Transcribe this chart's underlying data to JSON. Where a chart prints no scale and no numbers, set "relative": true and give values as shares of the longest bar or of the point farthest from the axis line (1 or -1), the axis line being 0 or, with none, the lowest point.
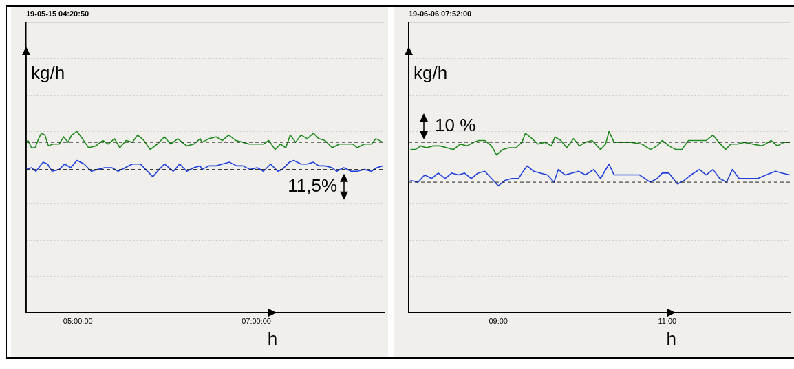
{
  "chart_data": [
    {
      "type": "line",
      "title": "19-05-15 04:20:50",
      "xlabel": "h",
      "ylabel": "kg/h",
      "relative": true,
      "grid": "y",
      "marker": "none",
      "legend": false,
      "xlim": [
        4.42,
        8.43
      ],
      "xticks": [
        {
          "value": 5,
          "label": "05:00:00"
        },
        {
          "value": 7,
          "label": "07:00:00"
        }
      ],
      "series": [
        {
          "color": "#1e8a1e",
          "x": [
            4.42,
            4.44,
            4.48,
            4.52,
            4.56,
            4.59,
            4.63,
            4.67,
            4.72,
            4.79,
            4.84,
            4.89,
            4.93,
            4.99,
            5.05,
            5.12,
            5.2,
            5.28,
            5.34,
            5.41,
            5.47,
            5.54,
            5.61,
            5.67,
            5.74,
            5.81,
            5.89,
            5.97,
            6.04,
            6.12,
            6.22,
            6.3,
            6.37,
            6.39,
            6.47,
            6.55,
            6.62,
            6.69,
            6.77,
            6.85,
            6.92,
            7.01,
            7.08,
            7.14,
            7.21,
            7.27,
            7.33,
            7.38,
            7.44,
            7.5,
            7.57,
            7.64,
            7.7,
            7.77,
            7.85,
            7.93,
            8.0,
            8.08,
            8.13,
            8.21,
            8.29,
            8.34,
            8.42
          ],
          "values": [
            0.94,
            0.95,
            0.91,
            0.91,
            0.96,
            0.99,
            0.98,
            0.92,
            0.93,
            0.93,
            0.97,
            0.94,
            0.98,
            1,
            0.96,
            0.91,
            0.92,
            0.95,
            0.93,
            0.96,
            0.91,
            0.95,
            0.94,
            0.98,
            0.95,
            0.9,
            0.93,
            0.97,
            0.93,
            0.96,
            0.92,
            0.93,
            0.96,
            0.94,
            0.96,
            0.97,
            0.95,
            0.98,
            0.95,
            0.94,
            0.93,
            0.93,
            0.93,
            0.95,
            0.9,
            0.93,
            0.91,
            0.98,
            0.94,
            0.98,
            0.96,
            0.99,
            0.96,
            0.95,
            0.91,
            0.93,
            0.93,
            0.93,
            0.91,
            0.93,
            0.93,
            0.96,
            0.94
          ]
        },
        {
          "color": "#1f3fdc",
          "x": [
            4.42,
            4.48,
            4.53,
            4.61,
            4.66,
            4.71,
            4.79,
            4.85,
            4.92,
            4.99,
            5.07,
            5.15,
            5.22,
            5.3,
            5.38,
            5.45,
            5.53,
            5.61,
            5.7,
            5.76,
            5.84,
            5.91,
            5.97,
            6.07,
            6.14,
            6.22,
            6.3,
            6.37,
            6.39,
            6.47,
            6.55,
            6.62,
            6.7,
            6.78,
            6.85,
            6.93,
            7.01,
            7.08,
            7.16,
            7.24,
            7.29,
            7.37,
            7.42,
            7.5,
            7.57,
            7.64,
            7.7,
            7.77,
            7.85,
            7.9,
            7.98,
            8.06,
            8.13,
            8.21,
            8.29,
            8.35,
            8.42
          ],
          "values": [
            0.79,
            0.8,
            0.78,
            0.83,
            0.82,
            0.78,
            0.79,
            0.82,
            0.8,
            0.84,
            0.82,
            0.78,
            0.79,
            0.8,
            0.8,
            0.78,
            0.8,
            0.82,
            0.82,
            0.79,
            0.75,
            0.79,
            0.82,
            0.78,
            0.82,
            0.78,
            0.8,
            0.81,
            0.79,
            0.81,
            0.81,
            0.82,
            0.83,
            0.81,
            0.81,
            0.79,
            0.8,
            0.78,
            0.82,
            0.78,
            0.79,
            0.83,
            0.84,
            0.82,
            0.82,
            0.83,
            0.81,
            0.81,
            0.8,
            0.78,
            0.8,
            0.78,
            0.78,
            0.79,
            0.78,
            0.8,
            0.81
          ]
        }
      ],
      "ref_lines": [
        {
          "axis": "y",
          "value": 0.94,
          "line_style": "dashed",
          "color": "#222222"
        },
        {
          "axis": "y",
          "value": 0.79,
          "line_style": "dashed",
          "color": "#222222"
        }
      ],
      "annotations": [
        "11,5%"
      ]
    },
    {
      "type": "line",
      "title": "19-06-06 07:52:00",
      "xlabel": "h",
      "ylabel": "kg/h",
      "relative": true,
      "grid": "y",
      "marker": "none",
      "legend": false,
      "xlim": [
        7.94,
        12.45
      ],
      "xticks": [
        {
          "value": 9,
          "label": "09:00"
        },
        {
          "value": 11,
          "label": "11:00"
        }
      ],
      "series": [
        {
          "color": "#1e8a1e",
          "x": [
            7.96,
            8.02,
            8.08,
            8.15,
            8.23,
            8.31,
            8.39,
            8.47,
            8.55,
            8.63,
            8.71,
            8.77,
            8.84,
            8.92,
            8.98,
            9.05,
            9.13,
            9.21,
            9.28,
            9.32,
            9.4,
            9.47,
            9.55,
            9.63,
            9.67,
            9.74,
            9.81,
            9.89,
            9.96,
            10.03,
            10.11,
            10.21,
            10.27,
            10.31,
            10.37,
            10.46,
            10.57,
            10.7,
            10.8,
            10.88,
            10.94,
            11.02,
            11.1,
            11.17,
            11.25,
            11.36,
            11.46,
            11.54,
            11.61,
            11.69,
            11.75,
            11.83,
            11.91,
            12.01,
            12.12,
            12.23,
            12.3,
            12.38,
            12.45
          ],
          "values": [
            0.9,
            0.9,
            0.92,
            0.91,
            0.92,
            0.92,
            0.91,
            0.9,
            0.93,
            0.92,
            0.94,
            0.95,
            0.95,
            0.92,
            0.87,
            0.9,
            0.91,
            0.91,
            0.94,
            0.99,
            0.96,
            0.93,
            0.94,
            0.92,
            0.97,
            0.95,
            0.91,
            0.96,
            0.92,
            0.94,
            0.95,
            0.9,
            0.93,
            1,
            0.94,
            0.94,
            0.94,
            0.93,
            0.9,
            0.92,
            0.95,
            0.92,
            0.9,
            0.9,
            0.95,
            0.95,
            0.95,
            0.98,
            0.94,
            0.9,
            0.93,
            0.93,
            0.94,
            0.93,
            0.92,
            0.95,
            0.92,
            0.94,
            0.94
          ]
        },
        {
          "color": "#1f3fdc",
          "x": [
            7.96,
            8.05,
            8.13,
            8.21,
            8.29,
            8.37,
            8.45,
            8.53,
            8.6,
            8.68,
            8.76,
            8.84,
            8.92,
            9.0,
            9.08,
            9.16,
            9.24,
            9.28,
            9.34,
            9.42,
            9.5,
            9.58,
            9.66,
            9.71,
            9.79,
            9.87,
            9.95,
            10.03,
            10.13,
            10.21,
            10.26,
            10.31,
            10.37,
            10.46,
            10.57,
            10.67,
            10.8,
            10.88,
            10.94,
            11.02,
            11.12,
            11.2,
            11.28,
            11.38,
            11.46,
            11.54,
            11.62,
            11.7,
            11.77,
            11.85,
            11.96,
            12.07,
            12.17,
            12.28,
            12.36,
            12.45
          ],
          "values": [
            0.73,
            0.72,
            0.76,
            0.74,
            0.77,
            0.74,
            0.77,
            0.76,
            0.77,
            0.74,
            0.77,
            0.78,
            0.74,
            0.7,
            0.73,
            0.74,
            0.74,
            0.77,
            0.81,
            0.78,
            0.77,
            0.76,
            0.72,
            0.79,
            0.76,
            0.77,
            0.78,
            0.76,
            0.79,
            0.74,
            0.78,
            0.82,
            0.76,
            0.76,
            0.76,
            0.76,
            0.72,
            0.74,
            0.77,
            0.77,
            0.71,
            0.73,
            0.76,
            0.79,
            0.76,
            0.79,
            0.74,
            0.72,
            0.79,
            0.74,
            0.74,
            0.74,
            0.76,
            0.78,
            0.77,
            0.76
          ]
        }
      ],
      "ref_lines": [
        {
          "axis": "y",
          "value": 0.94,
          "line_style": "dashed",
          "color": "#222222"
        },
        {
          "axis": "y",
          "value": 0.72,
          "line_style": "dashed",
          "color": "#222222"
        }
      ],
      "annotations": [
        "10 %"
      ]
    }
  ]
}
